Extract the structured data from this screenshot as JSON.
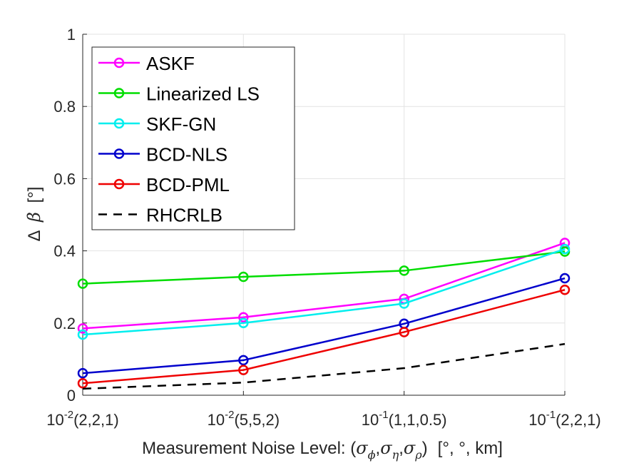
{
  "chart_data": {
    "type": "line",
    "title": "",
    "categories": [
      "10-2(2,2,1)",
      "10-2(5,5,2)",
      "10-1(1,1,0.5)",
      "10-1(2,2,1)"
    ],
    "x_tick_labels": [
      {
        "mantissa": "10",
        "exponent": "-2",
        "rest": "(2,2,1)"
      },
      {
        "mantissa": "10",
        "exponent": "-2",
        "rest": "(5,5,2)"
      },
      {
        "mantissa": "10",
        "exponent": "-1",
        "rest": "(1,1,0.5)"
      },
      {
        "mantissa": "10",
        "exponent": "-1",
        "rest": "(2,2,1)"
      }
    ],
    "xlabel": {
      "prefix": "Measurement Noise Level: (",
      "sym1": "σ",
      "sub1": "ϕ",
      "sep1": ",",
      "sym2": "σ",
      "sub2": "η",
      "sep2": ",",
      "sym3": "σ",
      "sub3": "ρ",
      "close": ")",
      "units": "[°, °, km]"
    },
    "ylabel": {
      "delta": "Δ",
      "beta": "β",
      "unit": "[°]"
    },
    "ylim": [
      0,
      1
    ],
    "yticks": [
      0,
      0.2,
      0.4,
      0.6,
      0.8,
      1
    ],
    "ytick_labels": [
      "0",
      "0.2",
      "0.4",
      "0.6",
      "0.8",
      "1"
    ],
    "grid": true,
    "legend_position": "top-left",
    "series": [
      {
        "name": "ASKF",
        "color": "#ff00ff",
        "style": "solid-circle",
        "values": [
          0.185,
          0.216,
          0.267,
          0.422
        ]
      },
      {
        "name": "Linearized LS",
        "color": "#00dd00",
        "style": "solid-circle",
        "values": [
          0.309,
          0.328,
          0.345,
          0.398
        ]
      },
      {
        "name": "SKF-GN",
        "color": "#00eeee",
        "style": "solid-circle",
        "values": [
          0.168,
          0.2,
          0.254,
          0.405
        ]
      },
      {
        "name": "BCD-NLS",
        "color": "#0000cc",
        "style": "solid-circle",
        "values": [
          0.061,
          0.097,
          0.198,
          0.324
        ]
      },
      {
        "name": "BCD-PML",
        "color": "#ee0000",
        "style": "solid-circle",
        "values": [
          0.033,
          0.07,
          0.175,
          0.292
        ]
      },
      {
        "name": "RHCRLB",
        "color": "#000000",
        "style": "dashed",
        "values": [
          0.018,
          0.035,
          0.075,
          0.142
        ]
      }
    ]
  }
}
